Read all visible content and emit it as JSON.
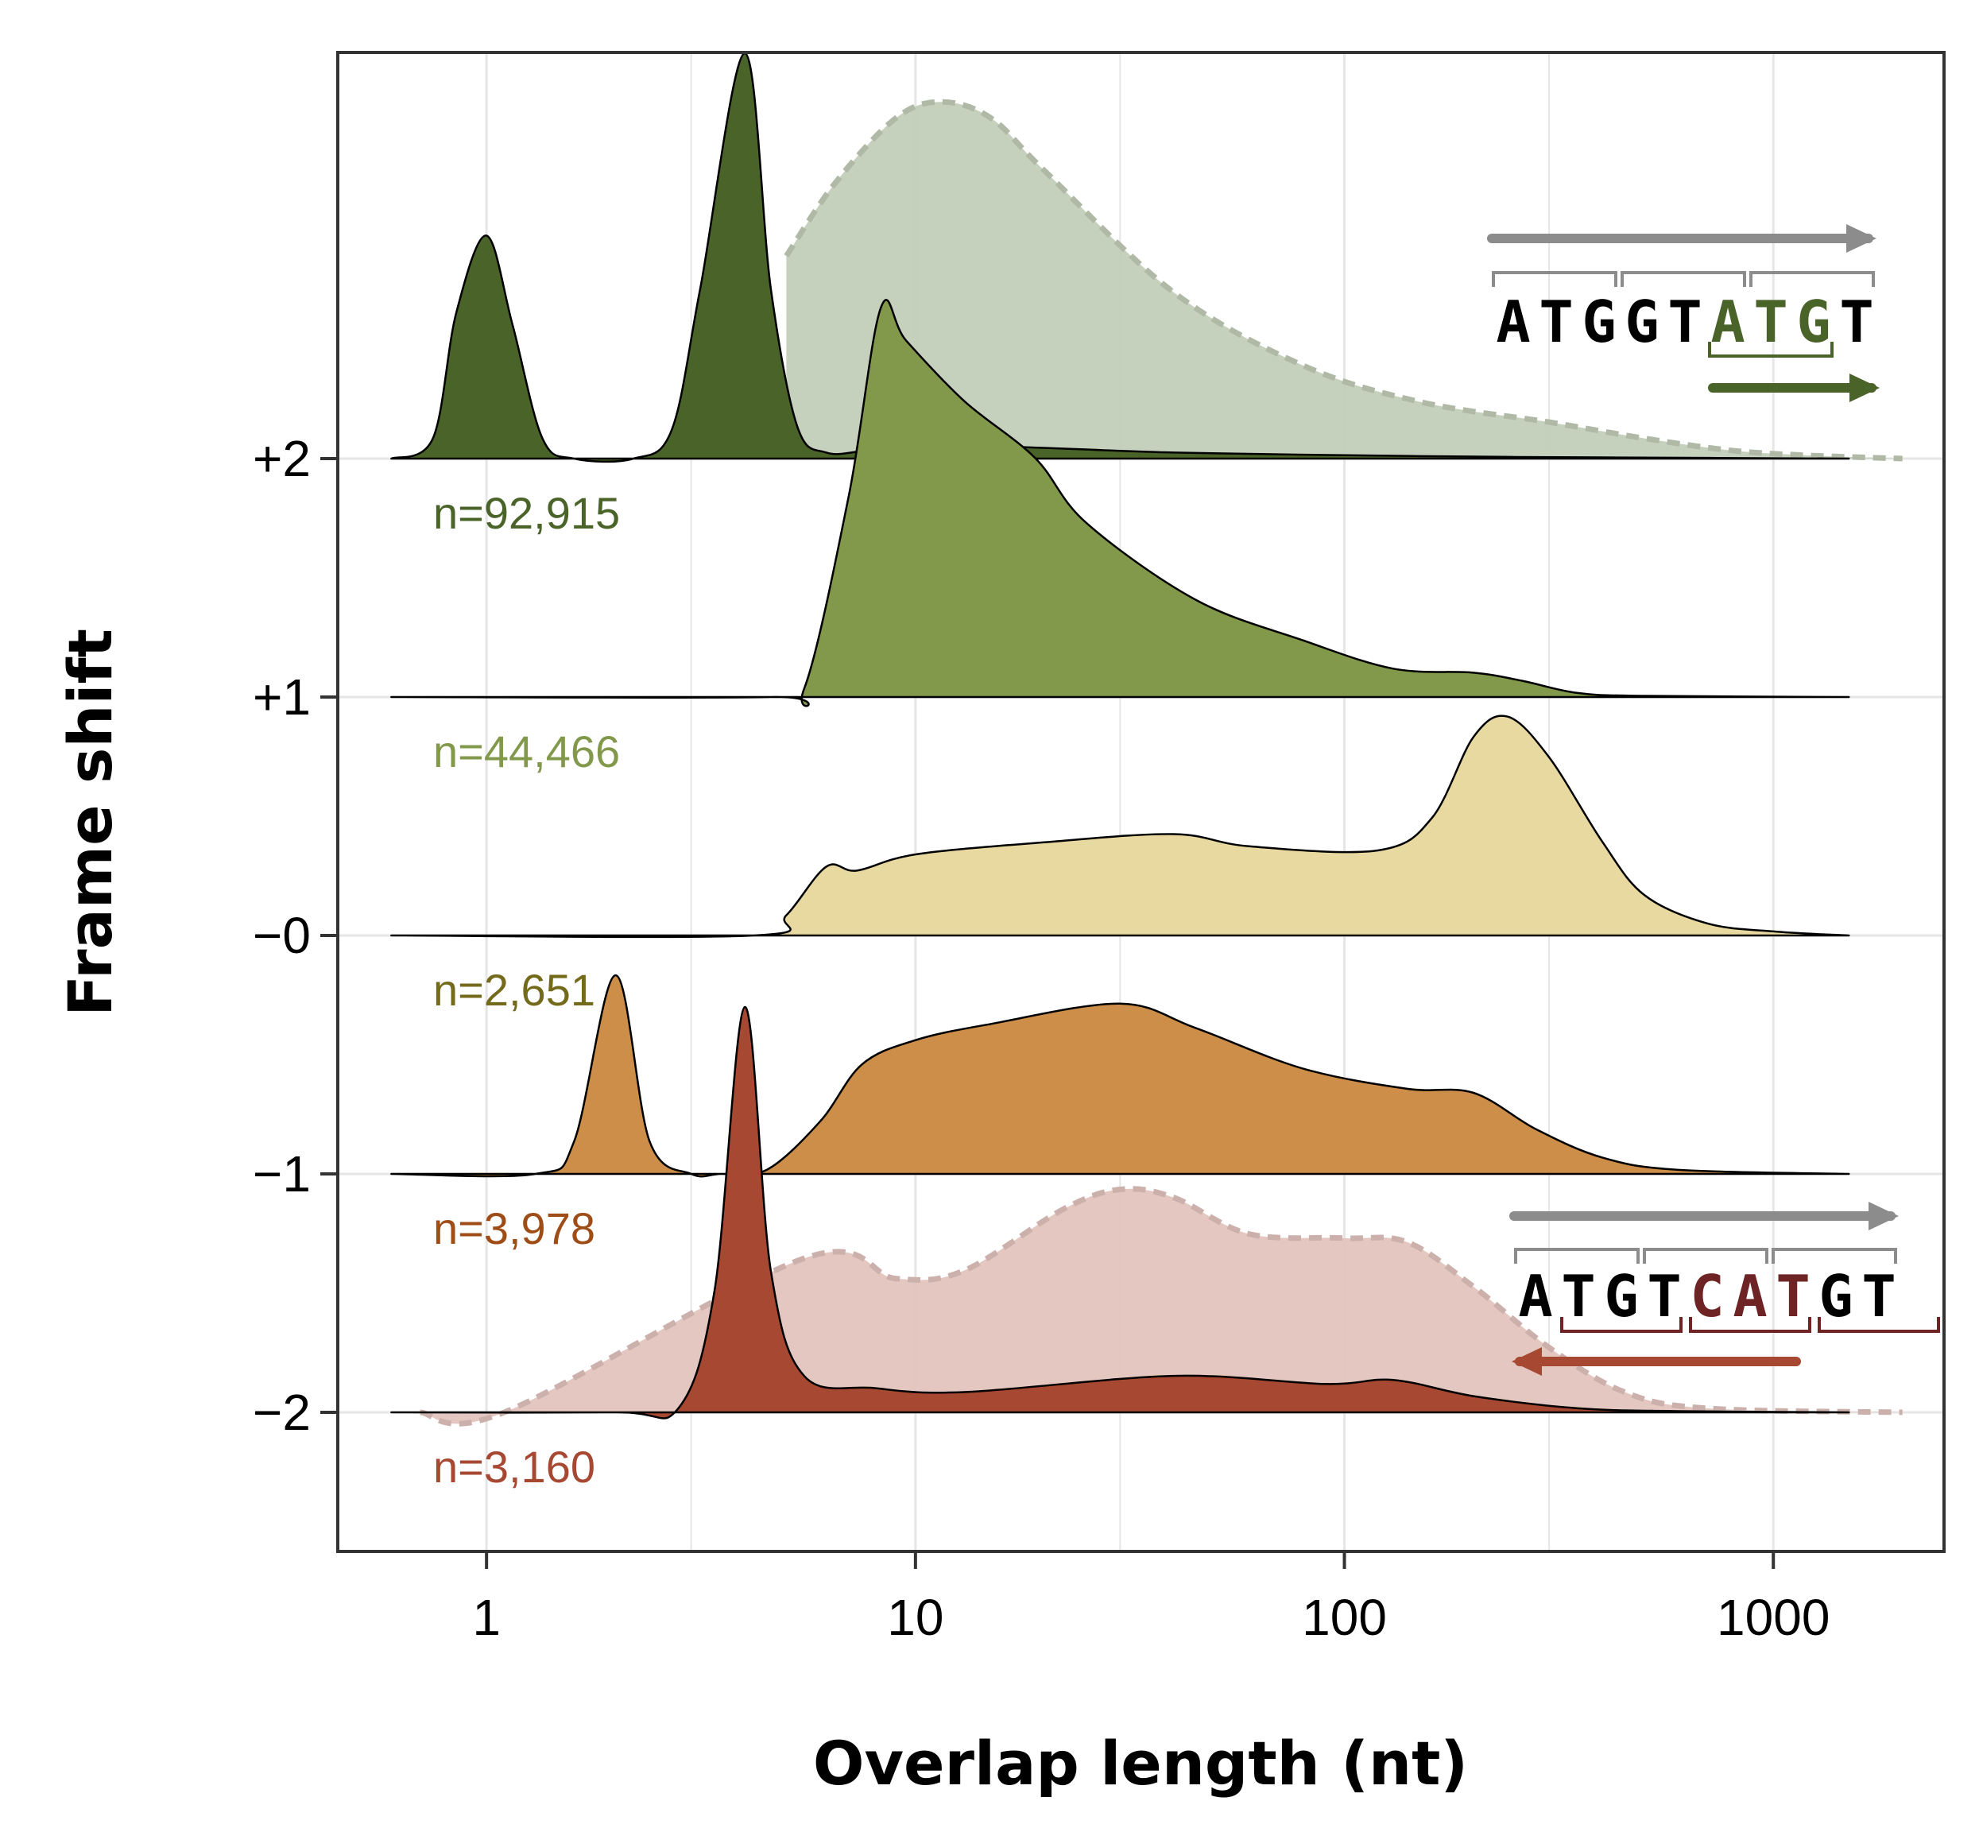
{
  "chart_data": {
    "type": "area",
    "xlabel": "Overlap length (nt)",
    "ylabel": "Frame shift",
    "x_scale": "log",
    "xlim": [
      0.45,
      2500
    ],
    "x_ticks": [
      "1",
      "10",
      "100",
      "1000"
    ],
    "x_tick_values": [
      1,
      10,
      100,
      1000
    ],
    "grid": true,
    "series": [
      {
        "name": "+2",
        "n_label": "n=92,915",
        "color": "#4a6329",
        "label_color": "#4a6329",
        "points": [
          [
            0.6,
            0.0
          ],
          [
            0.75,
            0.05
          ],
          [
            0.85,
            0.36
          ],
          [
            1.0,
            0.55
          ],
          [
            1.15,
            0.33
          ],
          [
            1.35,
            0.05
          ],
          [
            1.6,
            0.0
          ],
          [
            2.2,
            0.0
          ],
          [
            2.7,
            0.07
          ],
          [
            3.15,
            0.42
          ],
          [
            4.0,
            1.0
          ],
          [
            4.6,
            0.42
          ],
          [
            5.3,
            0.08
          ],
          [
            6.2,
            0.015
          ],
          [
            8,
            0.02
          ],
          [
            15,
            0.03
          ],
          [
            40,
            0.015
          ],
          [
            150,
            0.006
          ],
          [
            400,
            0.003
          ],
          [
            1500,
            0.0
          ]
        ],
        "shadow": {
          "color": "#c2cdb9",
          "points": [
            [
              5.0,
              0.5
            ],
            [
              6.5,
              0.68
            ],
            [
              9,
              0.84
            ],
            [
              11.5,
              0.88
            ],
            [
              15,
              0.84
            ],
            [
              20,
              0.71
            ],
            [
              40,
              0.41
            ],
            [
              80,
              0.23
            ],
            [
              150,
              0.14
            ],
            [
              300,
              0.09
            ],
            [
              500,
              0.05
            ],
            [
              800,
              0.02
            ],
            [
              1200,
              0.008
            ],
            [
              2000,
              0.0
            ]
          ]
        }
      },
      {
        "name": "+1",
        "n_label": "n=44,466",
        "color": "#82984a",
        "label_color": "#82984a",
        "points": [
          [
            0.6,
            0.0
          ],
          [
            4.6,
            0.0
          ],
          [
            5.5,
            0.02
          ],
          [
            7.0,
            0.5
          ],
          [
            8.3,
            0.96
          ],
          [
            9.5,
            0.88
          ],
          [
            13,
            0.73
          ],
          [
            19,
            0.59
          ],
          [
            25,
            0.43
          ],
          [
            45,
            0.24
          ],
          [
            80,
            0.14
          ],
          [
            130,
            0.07
          ],
          [
            200,
            0.06
          ],
          [
            260,
            0.04
          ],
          [
            350,
            0.01
          ],
          [
            500,
            0.003
          ],
          [
            1500,
            0.0
          ]
        ]
      },
      {
        "name": "−0",
        "n_label": "n=2,651",
        "color": "#e8d9a1",
        "label_color": "#746a1c",
        "points": [
          [
            0.6,
            0.0
          ],
          [
            4.2,
            0.0
          ],
          [
            5.0,
            0.05
          ],
          [
            6.2,
            0.17
          ],
          [
            7.3,
            0.16
          ],
          [
            10,
            0.2
          ],
          [
            20,
            0.23
          ],
          [
            40,
            0.25
          ],
          [
            60,
            0.22
          ],
          [
            120,
            0.21
          ],
          [
            160,
            0.29
          ],
          [
            200,
            0.49
          ],
          [
            240,
            0.54
          ],
          [
            300,
            0.44
          ],
          [
            400,
            0.23
          ],
          [
            500,
            0.1
          ],
          [
            700,
            0.03
          ],
          [
            1000,
            0.01
          ],
          [
            1500,
            0.0
          ]
        ]
      },
      {
        "name": "−1",
        "n_label": "n=3,978",
        "color": "#cc8e49",
        "label_color": "#9f4d16",
        "points": [
          [
            0.6,
            0.0
          ],
          [
            1.3,
            0.0
          ],
          [
            1.6,
            0.08
          ],
          [
            2.0,
            0.49
          ],
          [
            2.4,
            0.08
          ],
          [
            3.0,
            0.0
          ],
          [
            3.5,
            0.0
          ],
          [
            4.5,
            0.01
          ],
          [
            6,
            0.13
          ],
          [
            7.5,
            0.27
          ],
          [
            10,
            0.33
          ],
          [
            15,
            0.37
          ],
          [
            30,
            0.42
          ],
          [
            45,
            0.36
          ],
          [
            80,
            0.26
          ],
          [
            140,
            0.21
          ],
          [
            200,
            0.2
          ],
          [
            280,
            0.11
          ],
          [
            400,
            0.04
          ],
          [
            600,
            0.01
          ],
          [
            1500,
            0.0
          ]
        ]
      },
      {
        "name": "−2",
        "n_label": "n=3,160",
        "color": "#a64832",
        "label_color": "#a64832",
        "points": [
          [
            0.6,
            0.0
          ],
          [
            2.0,
            0.0
          ],
          [
            2.8,
            0.01
          ],
          [
            3.4,
            0.3
          ],
          [
            4.0,
            1.0
          ],
          [
            4.6,
            0.35
          ],
          [
            5.5,
            0.09
          ],
          [
            8,
            0.06
          ],
          [
            13,
            0.05
          ],
          [
            40,
            0.09
          ],
          [
            90,
            0.07
          ],
          [
            130,
            0.08
          ],
          [
            200,
            0.04
          ],
          [
            350,
            0.01
          ],
          [
            600,
            0.003
          ],
          [
            1500,
            0.0
          ]
        ],
        "shadow": {
          "color": "#e3c4be",
          "points": [
            [
              0.7,
              0.0
            ],
            [
              1.1,
              0.0
            ],
            [
              5.5,
              0.38
            ],
            [
              9,
              0.33
            ],
            [
              13,
              0.35
            ],
            [
              22,
              0.5
            ],
            [
              30,
              0.55
            ],
            [
              40,
              0.53
            ],
            [
              60,
              0.44
            ],
            [
              100,
              0.43
            ],
            [
              140,
              0.42
            ],
            [
              200,
              0.31
            ],
            [
              300,
              0.16
            ],
            [
              450,
              0.05
            ],
            [
              700,
              0.01
            ],
            [
              2000,
              0.0
            ]
          ]
        }
      }
    ],
    "insets": [
      {
        "sequence": "ATGGTATGT",
        "highlight": [
          5,
          6,
          7
        ],
        "highlight_color": "#4a6329",
        "arrow_color": "#4a6329",
        "direction": "forward"
      },
      {
        "sequence": "ATGTCATGT",
        "highlight": [
          4,
          5,
          6
        ],
        "highlight_color": "#6e2424",
        "arrow_color": "#a64832",
        "direction": "reverse"
      }
    ],
    "colors": {
      "gray_arrow": "#8c8c8c",
      "frame": "#333333",
      "grid": "#e6e6e6"
    }
  }
}
